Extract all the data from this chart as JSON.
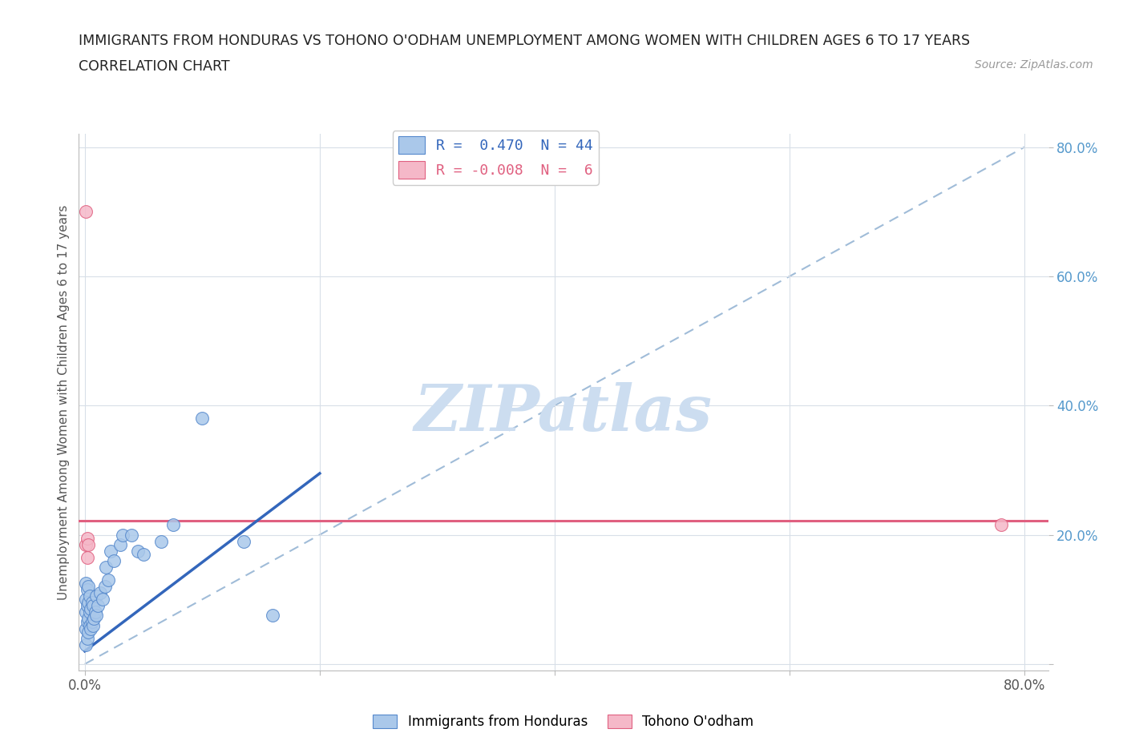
{
  "title_line1": "IMMIGRANTS FROM HONDURAS VS TOHONO O'ODHAM UNEMPLOYMENT AMONG WOMEN WITH CHILDREN AGES 6 TO 17 YEARS",
  "title_line2": "CORRELATION CHART",
  "source_text": "Source: ZipAtlas.com",
  "ylabel": "Unemployment Among Women with Children Ages 6 to 17 years",
  "xlim": [
    -0.005,
    0.82
  ],
  "ylim": [
    -0.01,
    0.82
  ],
  "watermark": "ZIPatlas",
  "blue_color": "#aac8ea",
  "blue_edge_color": "#5588cc",
  "blue_line_color": "#3366bb",
  "pink_color": "#f5b8c8",
  "pink_edge_color": "#e06080",
  "pink_line_color": "#e06080",
  "dashed_color": "#a0bcd8",
  "scatter_size": 130,
  "background_color": "#ffffff",
  "grid_color": "#d8dfe8",
  "title_color": "#222222",
  "watermark_color": "#ccddf0",
  "blue_scatter_x": [
    0.001,
    0.001,
    0.001,
    0.001,
    0.001,
    0.002,
    0.002,
    0.002,
    0.002,
    0.003,
    0.003,
    0.003,
    0.003,
    0.004,
    0.004,
    0.004,
    0.005,
    0.005,
    0.006,
    0.006,
    0.007,
    0.007,
    0.008,
    0.009,
    0.01,
    0.01,
    0.011,
    0.013,
    0.015,
    0.017,
    0.018,
    0.02,
    0.022,
    0.025,
    0.03,
    0.032,
    0.04,
    0.045,
    0.05,
    0.065,
    0.075,
    0.1,
    0.135,
    0.16
  ],
  "blue_scatter_y": [
    0.03,
    0.055,
    0.08,
    0.1,
    0.125,
    0.04,
    0.065,
    0.09,
    0.115,
    0.05,
    0.07,
    0.095,
    0.12,
    0.06,
    0.08,
    0.105,
    0.055,
    0.085,
    0.065,
    0.095,
    0.06,
    0.09,
    0.07,
    0.08,
    0.075,
    0.105,
    0.09,
    0.11,
    0.1,
    0.12,
    0.15,
    0.13,
    0.175,
    0.16,
    0.185,
    0.2,
    0.2,
    0.175,
    0.17,
    0.19,
    0.215,
    0.38,
    0.19,
    0.075
  ],
  "pink_scatter_x": [
    0.001,
    0.001,
    0.002,
    0.002,
    0.003,
    0.78
  ],
  "pink_scatter_y": [
    0.7,
    0.185,
    0.165,
    0.195,
    0.185,
    0.215
  ],
  "blue_line_x": [
    0.0,
    0.2
  ],
  "blue_line_y": [
    0.02,
    0.295
  ],
  "pink_line_y": 0.222,
  "dashed_line_x": [
    0.0,
    0.8
  ],
  "dashed_line_y": [
    0.0,
    0.8
  ]
}
